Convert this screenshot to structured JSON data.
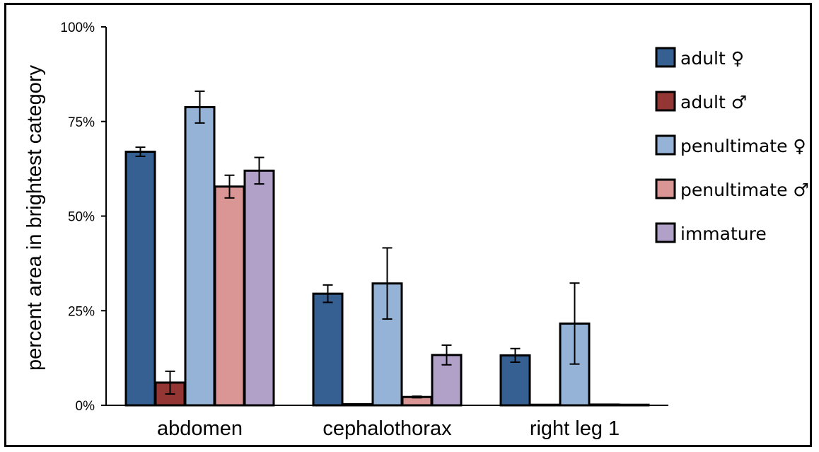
{
  "chart_data": {
    "type": "bar",
    "ylabel": "percent area in brightest category",
    "xlabel": "",
    "ylim": [
      0,
      100
    ],
    "yticks": [
      "0%",
      "25%",
      "50%",
      "75%",
      "100%"
    ],
    "ytick_values": [
      0,
      25,
      50,
      75,
      100
    ],
    "categories": [
      "abdomen",
      "cephalothorax",
      "right leg 1"
    ],
    "legend_position": "right",
    "grid": false,
    "series": [
      {
        "name": "adult ♀",
        "color": "#366092",
        "values": [
          67,
          29.5,
          13.2
        ],
        "errors": [
          1.2,
          2.3,
          1.8
        ]
      },
      {
        "name": "adult ♂",
        "color": "#943634",
        "values": [
          6,
          0.3,
          0
        ],
        "errors": [
          3,
          0,
          0
        ]
      },
      {
        "name": "penultimate ♀",
        "color": "#95b3d7",
        "values": [
          78.8,
          32.2,
          21.6
        ],
        "errors": [
          4.2,
          9.4,
          10.7
        ]
      },
      {
        "name": "penultimate ♂",
        "color": "#da9694",
        "values": [
          57.8,
          2.2,
          0.2
        ],
        "errors": [
          3,
          0.2,
          0
        ]
      },
      {
        "name": "immature",
        "color": "#b1a0c7",
        "values": [
          62,
          13.3,
          0
        ],
        "errors": [
          3.5,
          2.6,
          0
        ]
      }
    ]
  }
}
